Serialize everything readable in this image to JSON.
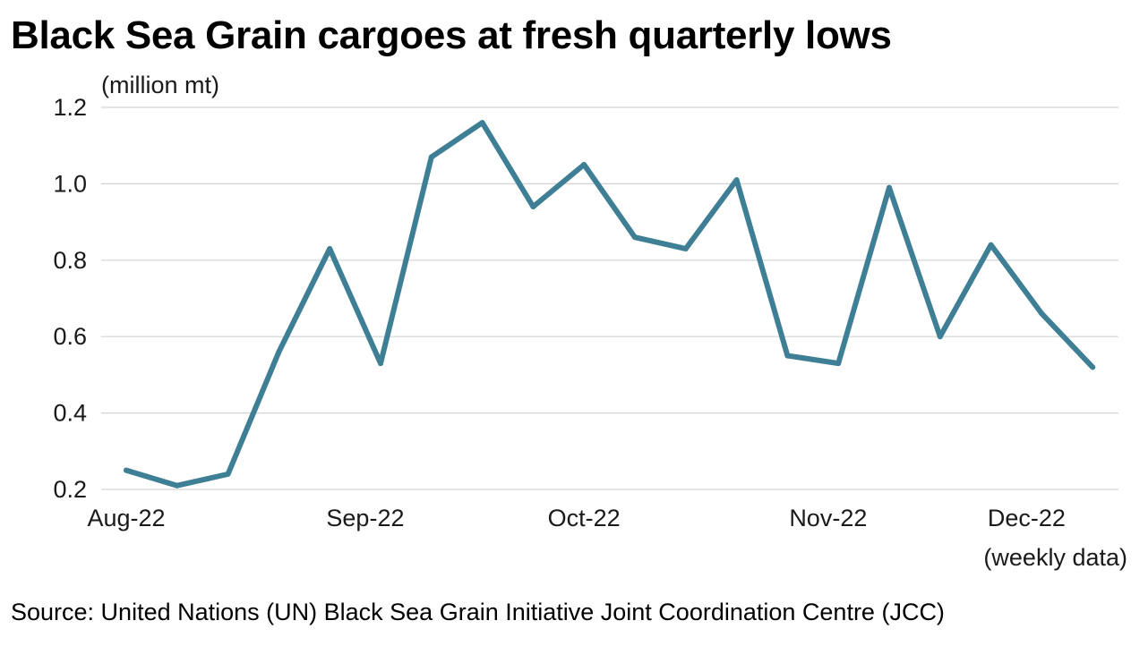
{
  "chart_data": {
    "type": "line",
    "title": "Black Sea Grain cargoes at fresh quarterly lows",
    "ylabel": "(million mt)",
    "xlabel": "(weekly data)",
    "ylim": [
      0.2,
      1.2
    ],
    "yticks": [
      "0.2",
      "0.4",
      "0.6",
      "0.8",
      "1.0",
      "1.2"
    ],
    "grid": true,
    "legend": "none",
    "x_tick_labels": [
      "Aug-22",
      "Sep-22",
      "Oct-22",
      "Nov-22",
      "Dec-22"
    ],
    "x_tick_weeks": [
      0,
      4.7,
      9,
      13.8,
      17.7
    ],
    "series": [
      {
        "color": "#3f7f96",
        "values": [
          0.25,
          0.21,
          0.24,
          0.56,
          0.83,
          0.53,
          1.07,
          1.16,
          0.94,
          1.05,
          0.86,
          0.83,
          1.01,
          0.55,
          0.53,
          0.99,
          0.6,
          0.84,
          0.66,
          0.52
        ]
      }
    ]
  },
  "source": "Source: United Nations (UN) Black Sea Grain Initiative Joint Coordination Centre (JCC)",
  "colors": {
    "line": "#3f7f96",
    "grid": "#d3d3d3",
    "text": "#1a1a1a"
  }
}
